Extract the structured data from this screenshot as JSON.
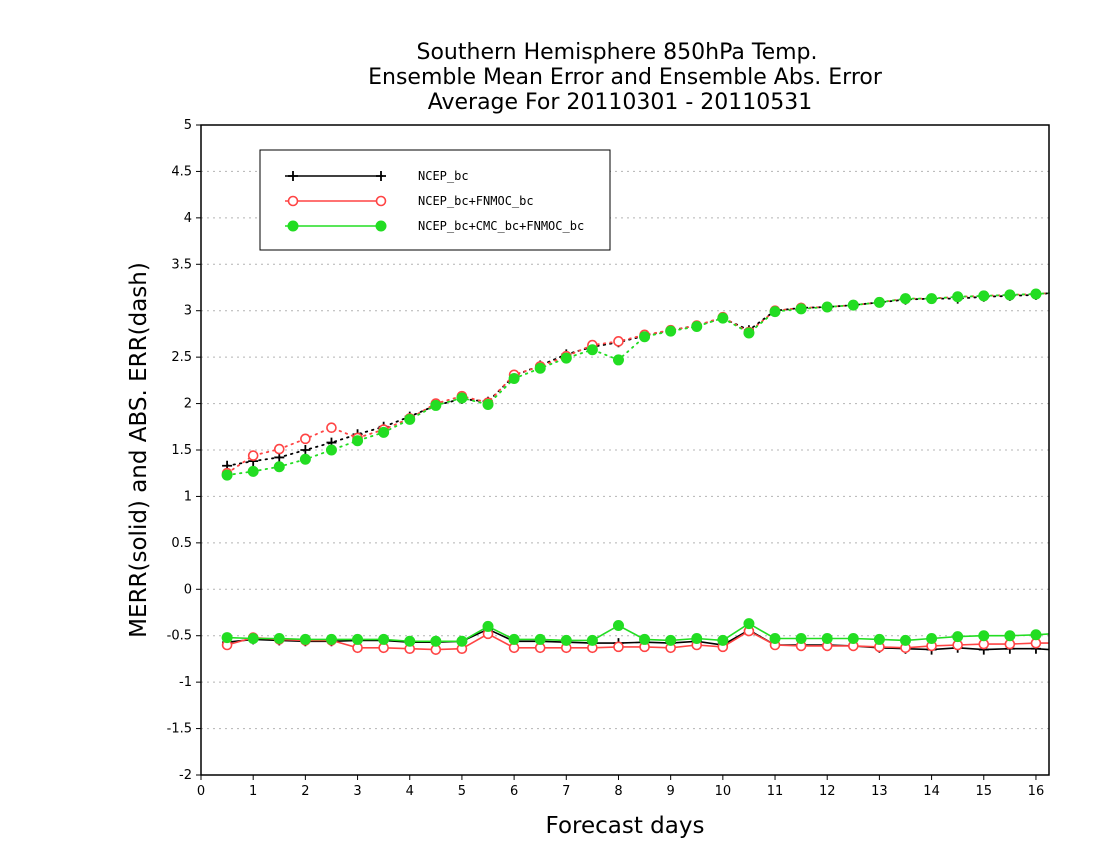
{
  "chart_data": {
    "type": "line",
    "title": [
      "Southern Hemisphere 850hPa Temp.",
      "Ensemble Mean Error and Ensemble Abs. Error",
      "Average For 20110301 - 20110531"
    ],
    "xlabel": "Forecast days",
    "ylabel": "MERR(solid) and ABS. ERR(dash)",
    "xlim": [
      0,
      16.25
    ],
    "ylim": [
      -2,
      5
    ],
    "xticks": [
      "0",
      "1",
      "2",
      "3",
      "4",
      "5",
      "6",
      "7",
      "8",
      "9",
      "10",
      "11",
      "12",
      "13",
      "14",
      "15",
      "16"
    ],
    "yticks": [
      "5",
      "4.5",
      "4",
      "3.5",
      "3",
      "2.5",
      "2",
      "1.5",
      "1",
      "0.5",
      "0",
      "-0.5",
      "-1",
      "-1.5",
      "-2"
    ],
    "grid": "horizontal dotted",
    "legend_position": "top-left",
    "x": [
      0.5,
      1,
      1.5,
      2,
      2.5,
      3,
      3.5,
      4,
      4.5,
      5,
      5.5,
      6,
      6.5,
      7,
      7.5,
      8,
      8.5,
      9,
      9.5,
      10,
      10.5,
      11,
      11.5,
      12,
      12.5,
      13,
      13.5,
      14,
      14.5,
      15,
      15.5,
      16,
      16.25
    ],
    "series": [
      {
        "name": "NCEP_bc",
        "color": "#000000",
        "marker": "plus",
        "mean_error": [
          -0.57,
          -0.54,
          -0.55,
          -0.56,
          -0.56,
          -0.55,
          -0.55,
          -0.57,
          -0.57,
          -0.56,
          -0.43,
          -0.56,
          -0.56,
          -0.57,
          -0.58,
          -0.58,
          -0.57,
          -0.58,
          -0.56,
          -0.6,
          -0.44,
          -0.6,
          -0.6,
          -0.6,
          -0.61,
          -0.63,
          -0.64,
          -0.65,
          -0.63,
          -0.65,
          -0.64,
          -0.64,
          -0.65
        ],
        "abs_error": [
          1.33,
          1.38,
          1.42,
          1.5,
          1.58,
          1.67,
          1.75,
          1.86,
          1.98,
          2.05,
          2.02,
          2.3,
          2.41,
          2.53,
          2.61,
          2.66,
          2.73,
          2.79,
          2.84,
          2.92,
          2.79,
          3.0,
          3.03,
          3.04,
          3.06,
          3.09,
          3.12,
          3.13,
          3.13,
          3.15,
          3.16,
          3.17,
          3.19
        ]
      },
      {
        "name": "NCEP_bc+FNMOC_bc",
        "color": "#ff4444",
        "marker": "open-circle",
        "mean_error": [
          -0.6,
          -0.52,
          -0.54,
          -0.55,
          -0.55,
          -0.63,
          -0.63,
          -0.64,
          -0.65,
          -0.64,
          -0.48,
          -0.63,
          -0.63,
          -0.63,
          -0.63,
          -0.62,
          -0.62,
          -0.63,
          -0.6,
          -0.62,
          -0.45,
          -0.6,
          -0.61,
          -0.61,
          -0.61,
          -0.62,
          -0.63,
          -0.61,
          -0.6,
          -0.59,
          -0.59,
          -0.58,
          -0.58
        ],
        "abs_error": [
          1.25,
          1.44,
          1.51,
          1.62,
          1.74,
          1.63,
          1.72,
          1.84,
          2.0,
          2.08,
          2.01,
          2.31,
          2.4,
          2.51,
          2.63,
          2.67,
          2.74,
          2.79,
          2.84,
          2.93,
          2.77,
          3.0,
          3.03,
          3.04,
          3.06,
          3.09,
          3.13,
          3.13,
          3.15,
          3.16,
          3.17,
          3.18,
          3.19
        ]
      },
      {
        "name": "NCEP_bc+CMC_bc+FNMOC_bc",
        "color": "#22dd22",
        "marker": "filled-circle",
        "mean_error": [
          -0.52,
          -0.53,
          -0.53,
          -0.54,
          -0.54,
          -0.54,
          -0.54,
          -0.56,
          -0.56,
          -0.56,
          -0.4,
          -0.54,
          -0.54,
          -0.55,
          -0.55,
          -0.39,
          -0.54,
          -0.55,
          -0.53,
          -0.55,
          -0.37,
          -0.53,
          -0.53,
          -0.53,
          -0.53,
          -0.54,
          -0.55,
          -0.53,
          -0.51,
          -0.5,
          -0.5,
          -0.49,
          -0.48
        ],
        "abs_error": [
          1.23,
          1.27,
          1.32,
          1.4,
          1.5,
          1.6,
          1.69,
          1.83,
          1.98,
          2.06,
          1.99,
          2.27,
          2.38,
          2.49,
          2.58,
          2.47,
          2.72,
          2.78,
          2.83,
          2.92,
          2.76,
          2.99,
          3.02,
          3.04,
          3.06,
          3.09,
          3.13,
          3.13,
          3.15,
          3.16,
          3.17,
          3.18,
          3.19
        ]
      }
    ]
  }
}
